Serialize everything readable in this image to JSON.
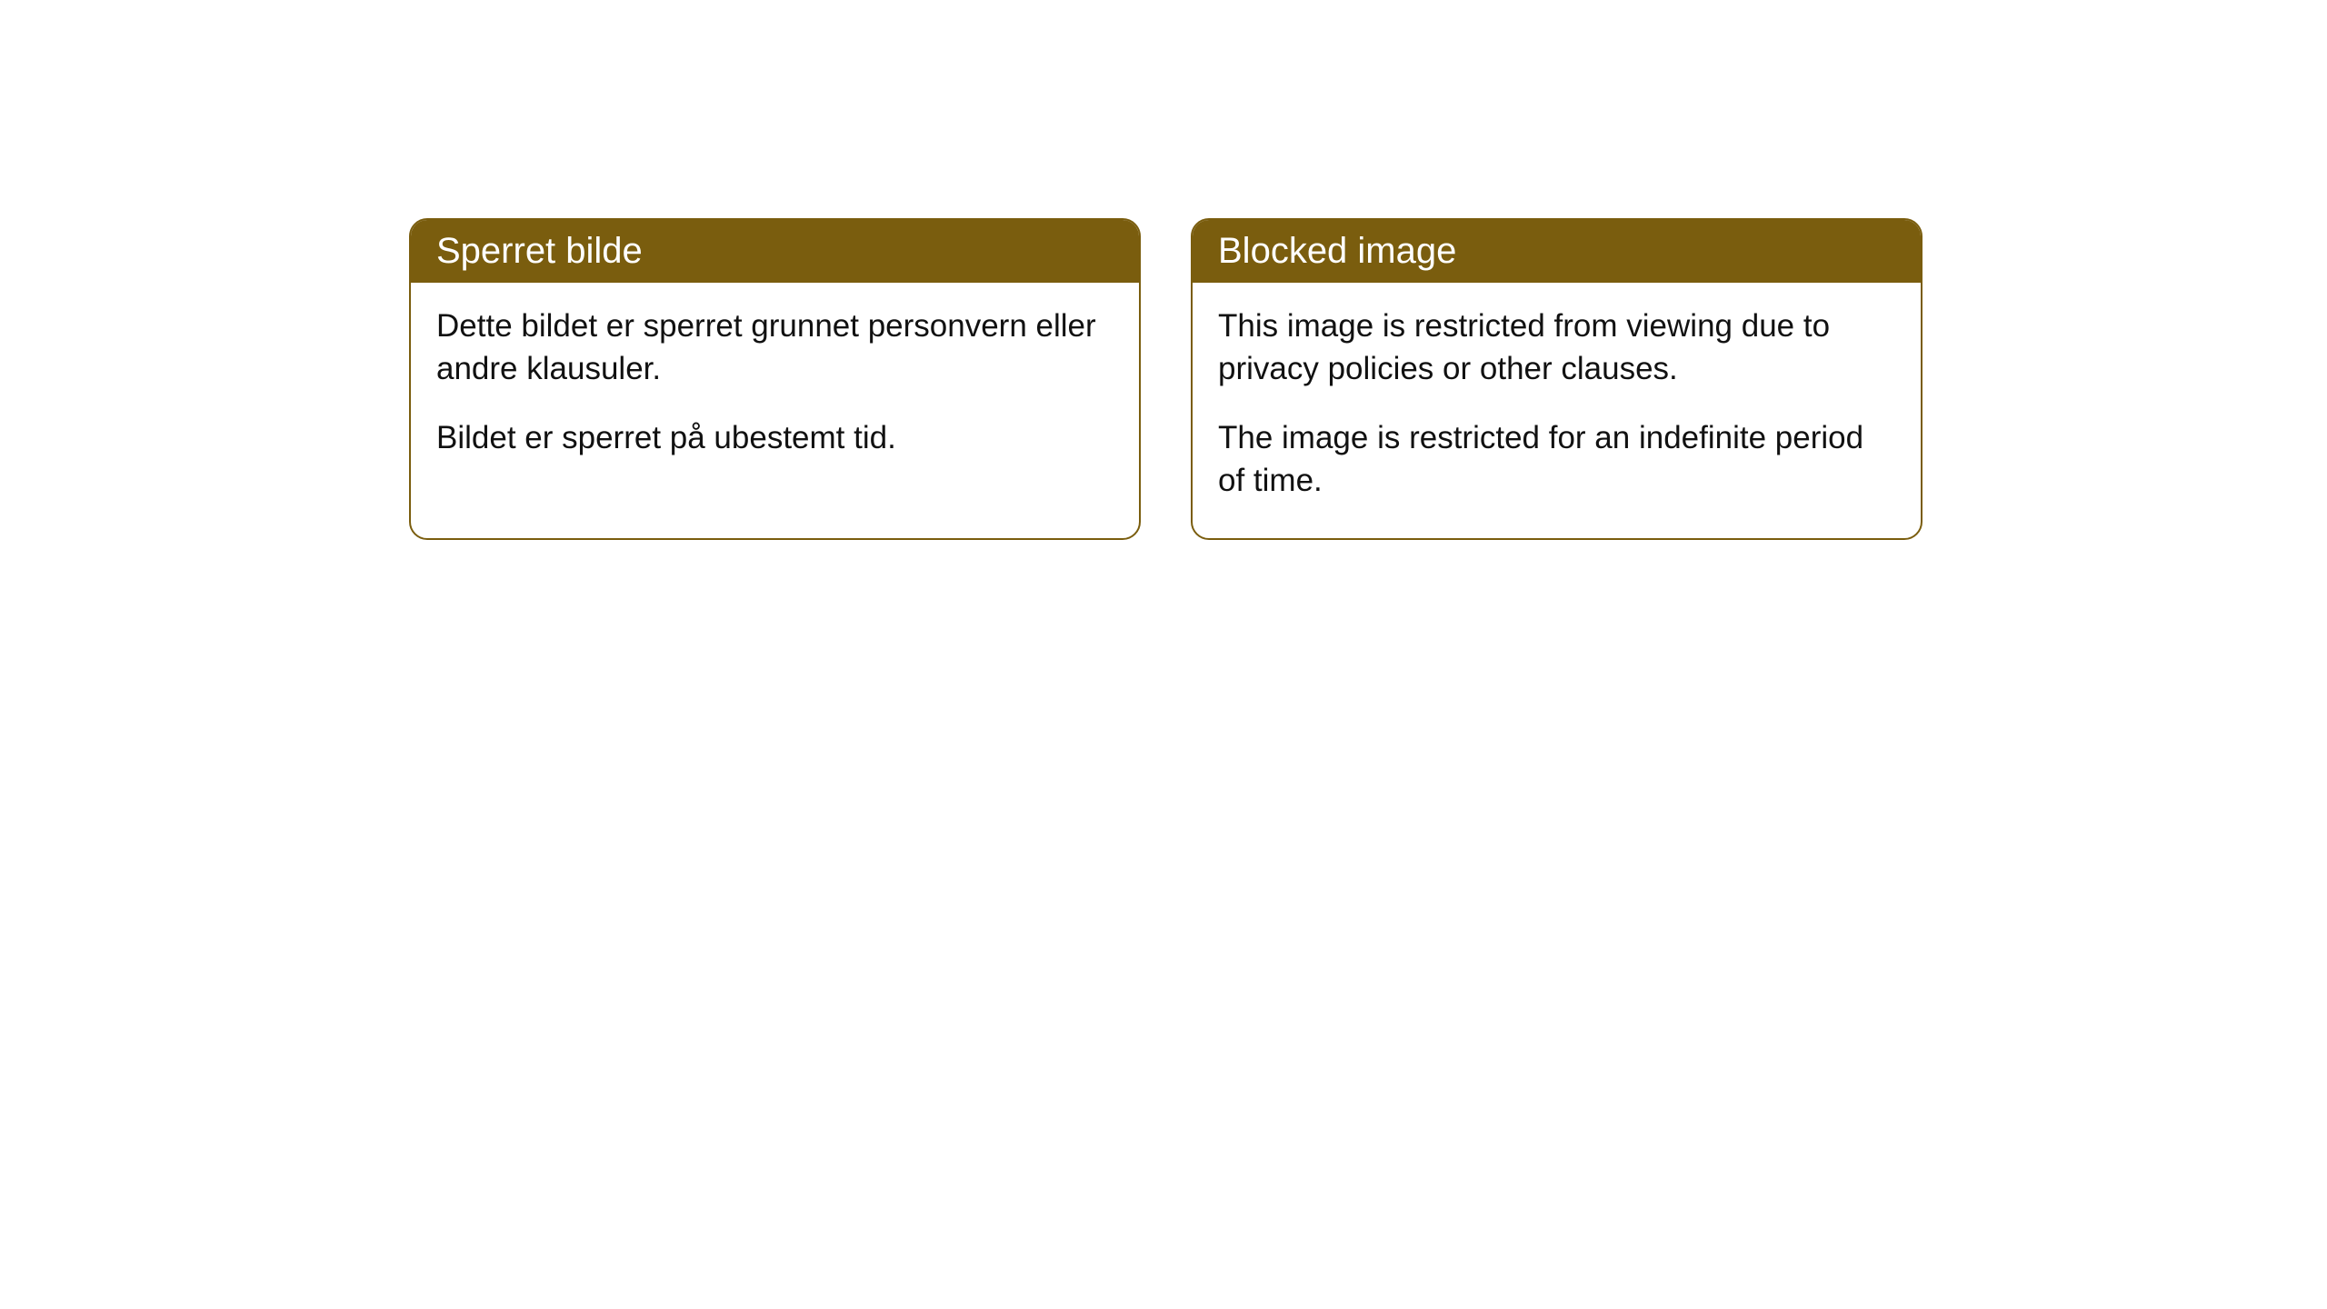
{
  "cards": [
    {
      "title": "Sperret bilde",
      "paragraph1": "Dette bildet er sperret grunnet personvern eller andre klausuler.",
      "paragraph2": "Bildet er sperret på ubestemt tid."
    },
    {
      "title": "Blocked image",
      "paragraph1": "This image is restricted from viewing due to privacy policies or other clauses.",
      "paragraph2": "The image is restricted for an indefinite period of time."
    }
  ],
  "styling": {
    "header_background": "#7a5d0e",
    "header_text_color": "#ffffff",
    "body_text_color": "#111111",
    "card_border_color": "#7a5d0e",
    "card_background": "#ffffff",
    "page_background": "#ffffff",
    "border_radius": 20,
    "header_fontsize": 40,
    "body_fontsize": 35
  }
}
